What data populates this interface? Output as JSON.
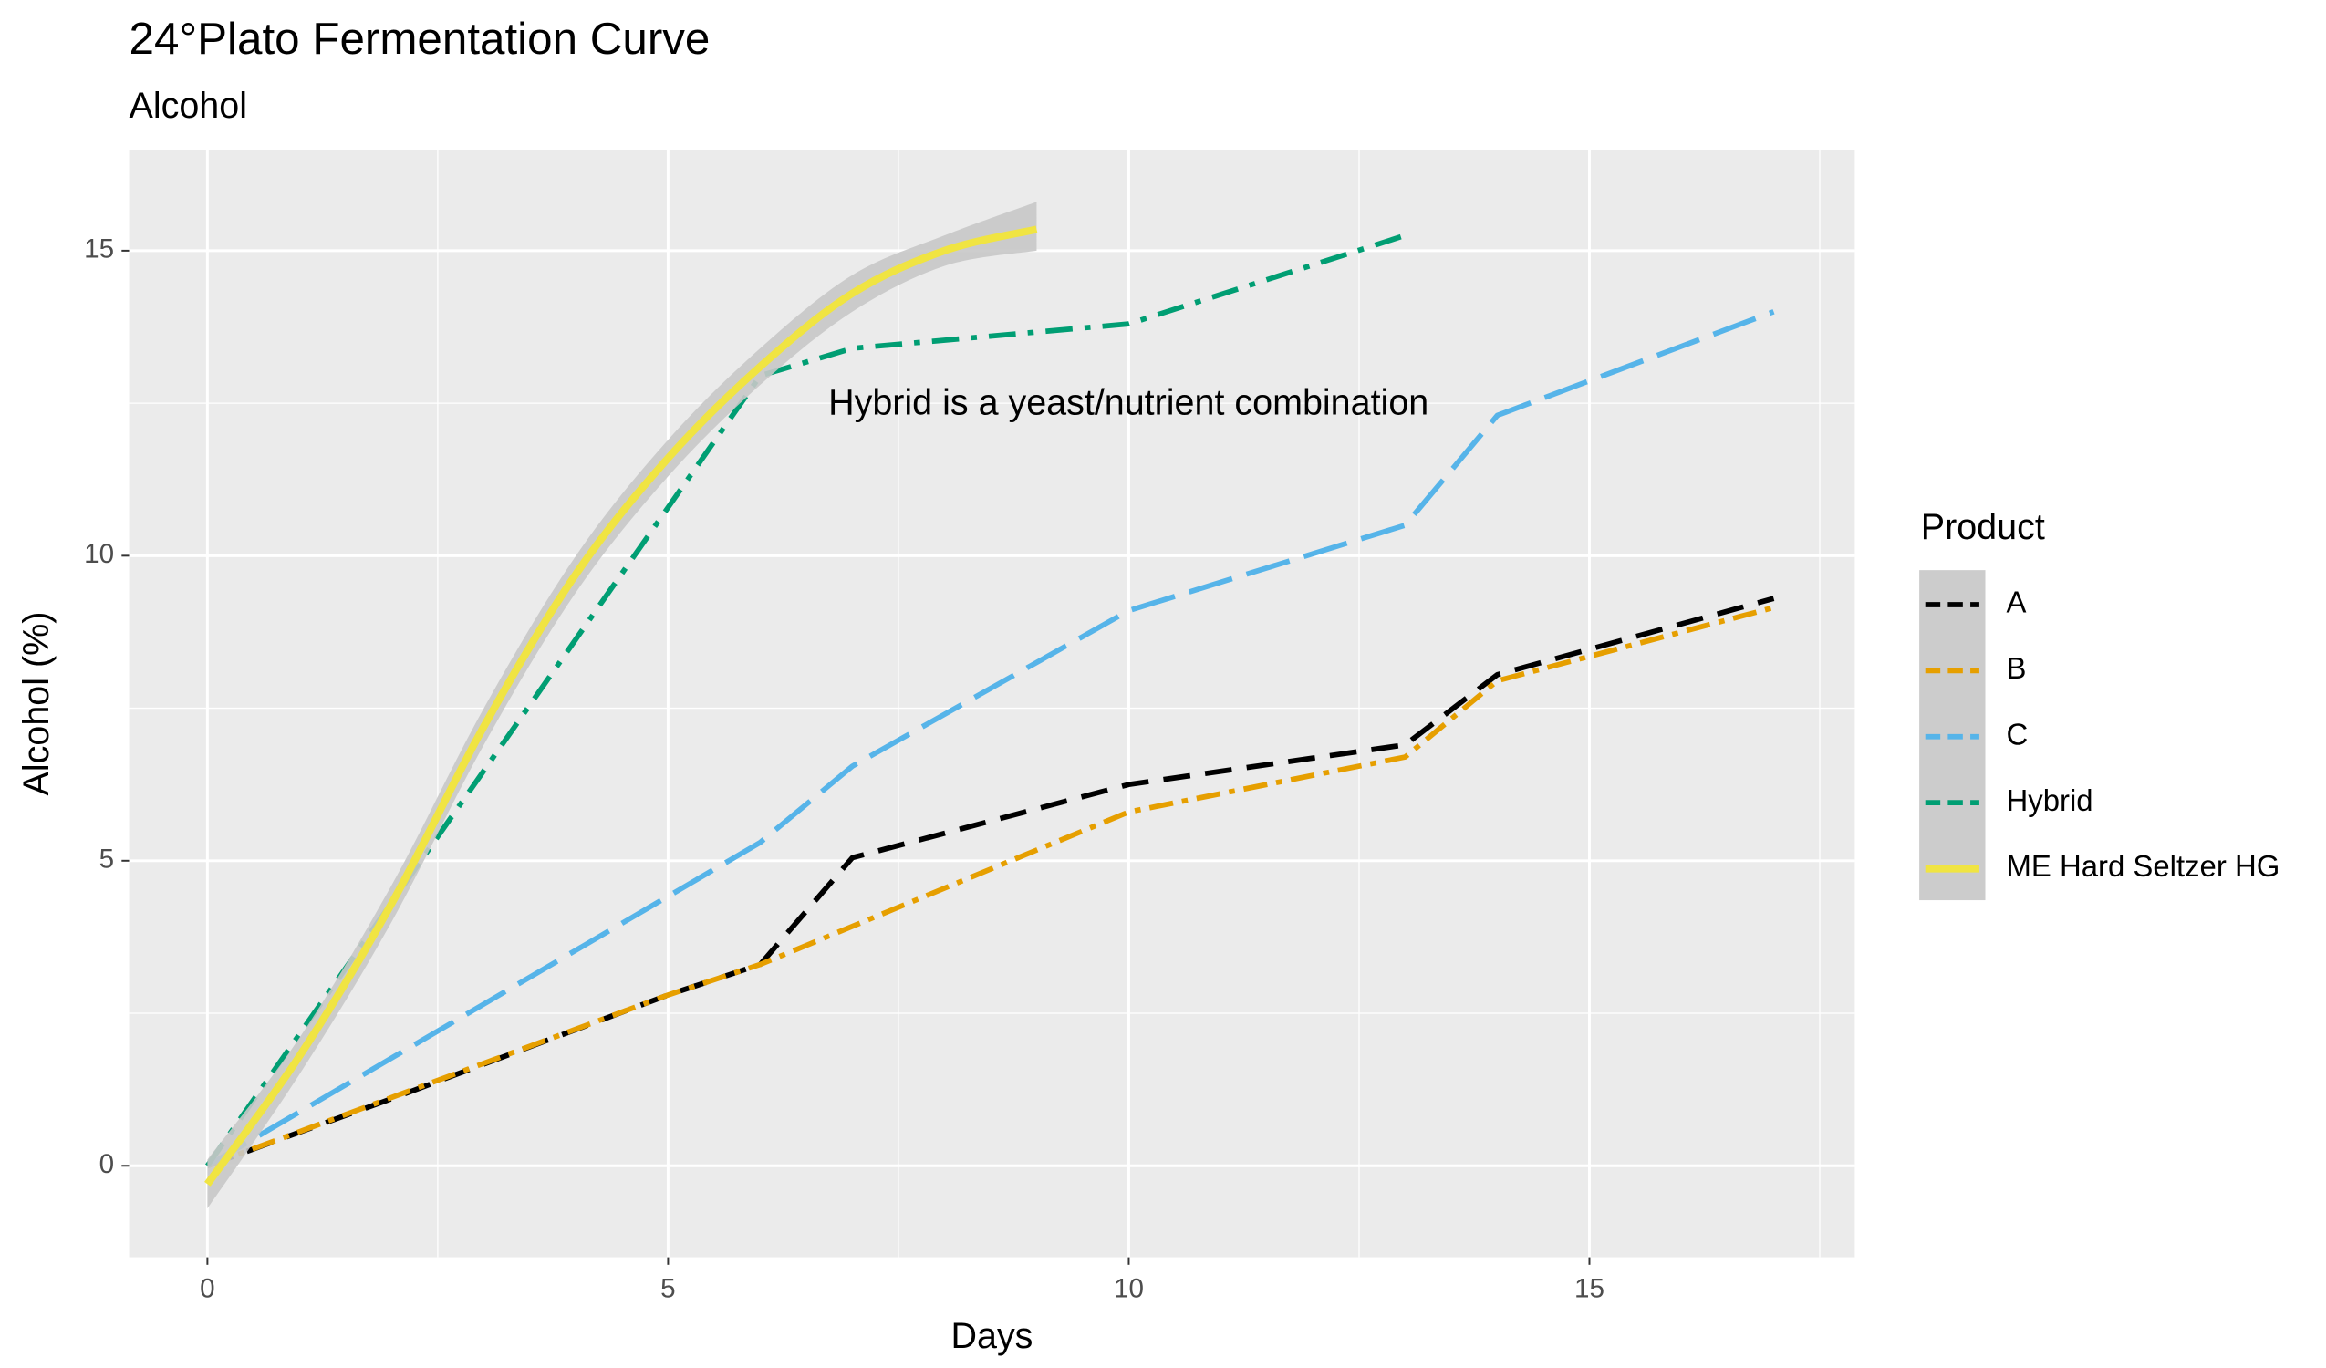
{
  "chart_data": {
    "type": "line",
    "title": "24°Plato Fermentation Curve",
    "subtitle": "Alcohol",
    "x_label": "Days",
    "y_label": "Alcohol (%)",
    "annotation": "Hybrid is a yeast/nutrient combination",
    "legend_title": "Product",
    "legend_position": "right",
    "grid": true,
    "xlim": [
      -0.85,
      17.88
    ],
    "ylim": [
      -1.5,
      16.65
    ],
    "xticks": [
      0,
      5,
      10,
      15
    ],
    "yticks": [
      0,
      5,
      10,
      15
    ],
    "series": [
      {
        "name": "A",
        "color": "#000000",
        "dash": "18 10",
        "x": [
          0,
          2,
          5,
          6,
          7,
          10,
          13,
          14,
          17
        ],
        "values": [
          0,
          1.1,
          2.8,
          3.3,
          5.05,
          6.25,
          6.9,
          8.05,
          9.3
        ]
      },
      {
        "name": "B",
        "color": "#E69F00",
        "dash": "16 6 4 6",
        "x": [
          0,
          5,
          6,
          10,
          13,
          14,
          17
        ],
        "values": [
          0,
          2.8,
          3.3,
          5.8,
          6.7,
          7.95,
          9.15
        ]
      },
      {
        "name": "C",
        "color": "#56B4E9",
        "dash": "30 10",
        "x": [
          0,
          6,
          7,
          10,
          13,
          14,
          17
        ],
        "values": [
          0,
          5.3,
          6.55,
          9.1,
          10.5,
          12.3,
          14.0
        ]
      },
      {
        "name": "Hybrid",
        "color": "#009E73",
        "dash": "18 8 4 8",
        "x": [
          0,
          6,
          7,
          10,
          13
        ],
        "values": [
          0,
          12.95,
          13.4,
          13.8,
          15.25
        ]
      },
      {
        "name": "ME Hard Seltzer HG",
        "color": "#F0E442",
        "dash": "none",
        "smooth": true,
        "x": [
          0,
          1,
          2,
          3,
          4,
          5,
          6,
          7,
          8,
          9
        ],
        "values": [
          -0.3,
          1.8,
          4.3,
          7.2,
          9.7,
          11.6,
          13.1,
          14.3,
          15.0,
          15.35
        ],
        "lower": [
          -0.7,
          1.5,
          4.0,
          6.9,
          9.4,
          11.3,
          12.8,
          14.0,
          14.75,
          15.0
        ],
        "upper": [
          0.1,
          2.1,
          4.6,
          7.5,
          10.0,
          11.9,
          13.4,
          14.6,
          15.25,
          15.8
        ]
      }
    ]
  }
}
